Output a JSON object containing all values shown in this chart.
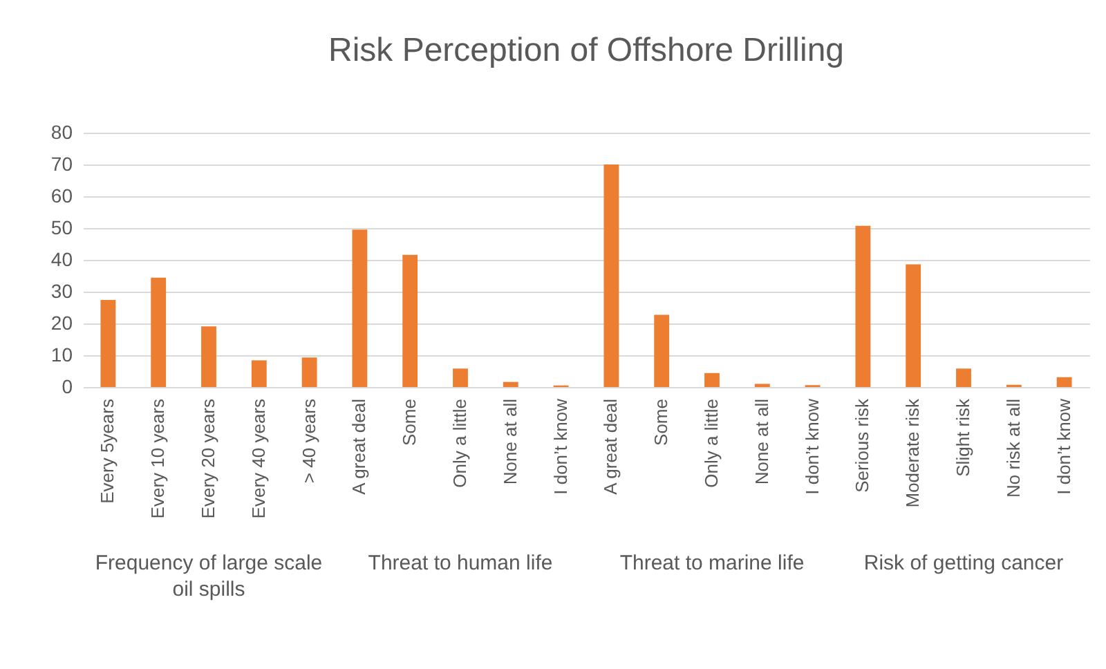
{
  "chart_data": {
    "type": "bar",
    "title": "Risk Perception of Offshore Drilling",
    "categories": [
      "Every 5years",
      "Every 10 years",
      "Every 20 years",
      "Every 40 years",
      "> 40 years",
      "A great deal",
      "Some",
      "Only a little",
      "None at all",
      "I don’t know",
      "A great deal",
      "Some",
      "Only a little",
      "None at all",
      "I don’t know",
      "Serious risk",
      "Moderate risk",
      "Slight risk",
      "No risk at all",
      "I don’t know"
    ],
    "values": [
      27.4,
      34.4,
      19.1,
      8.4,
      9.3,
      49.5,
      41.6,
      5.8,
      1.6,
      0.5,
      70,
      22.7,
      4.4,
      1.0,
      0.6,
      50.7,
      38.6,
      5.8,
      0.7,
      3.1
    ],
    "color": "#ed7d31",
    "ylim": [
      0,
      80
    ],
    "yticks": [
      0,
      10,
      20,
      30,
      40,
      50,
      60,
      70,
      80
    ],
    "grid": "y",
    "annotations": [
      "Frequency of large scale oil spills",
      "Threat to human life",
      "Threat to marine life",
      "Risk of getting cancer"
    ]
  }
}
